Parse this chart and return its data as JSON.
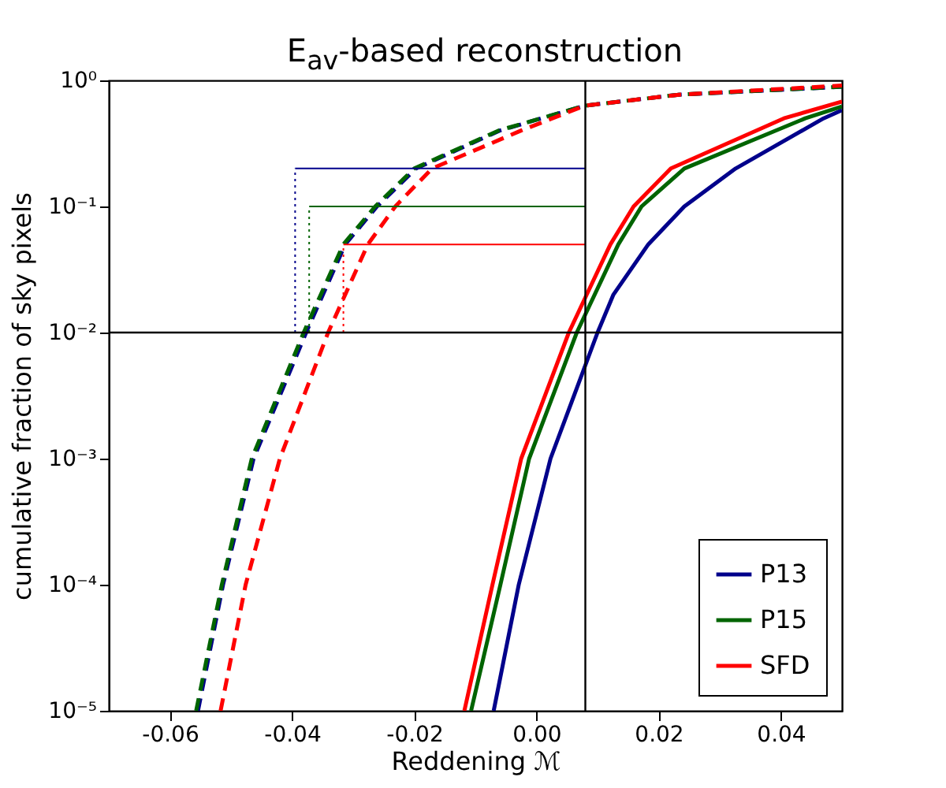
{
  "chart_data": {
    "type": "line",
    "title": "E$_{av}$-based reconstruction",
    "xlabel": "Reddening ℳ",
    "ylabel": "cumulative fraction of sky pixels",
    "log": "y",
    "grid": false,
    "legend": "bottom right",
    "marker": "none",
    "xlim": [
      -0.07,
      0.05
    ],
    "xticks": [
      -0.06,
      -0.04,
      -0.02,
      {
        "value": 0,
        "label": "0.00"
      },
      0.02,
      0.04
    ],
    "ylim": [
      1e-05,
      1
    ],
    "yticks": [
      {
        "value": 1e-05,
        "label": "10⁻⁵"
      },
      {
        "value": 0.0001,
        "label": "10⁻⁴"
      },
      {
        "value": 0.001,
        "label": "10⁻³"
      },
      {
        "value": 0.01,
        "label": "10⁻²"
      },
      {
        "value": 0.1,
        "label": "10⁻¹"
      },
      {
        "value": 1,
        "label": "10⁰"
      }
    ],
    "series": [
      {
        "name": "P13",
        "color": "#00008b",
        "line_style": "solid",
        "x": [
          -0.007,
          -0.0029,
          0.0023,
          0.01,
          0.0126,
          0.0183,
          0.0242,
          0.0326,
          0.047,
          0.05
        ],
        "values": [
          1e-05,
          0.0001,
          0.001,
          0.01,
          0.02,
          0.05,
          0.1,
          0.2,
          0.5,
          0.58
        ]
      },
      {
        "name": "P15",
        "color": "#006400",
        "line_style": "solid",
        "x": [
          -0.0107,
          -0.0059,
          -0.0012,
          0.0066,
          0.0134,
          0.0172,
          0.0242,
          0.044,
          0.05
        ],
        "values": [
          1e-05,
          0.0001,
          0.001,
          0.01,
          0.05,
          0.1,
          0.2,
          0.5,
          0.62
        ]
      },
      {
        "name": "SFD",
        "color": "#ff0000",
        "line_style": "solid",
        "x": [
          -0.0118,
          -0.0072,
          -0.0025,
          0.0053,
          0.0121,
          0.0159,
          0.022,
          0.0405,
          0.05
        ],
        "values": [
          1e-05,
          0.0001,
          0.001,
          0.01,
          0.05,
          0.1,
          0.2,
          0.5,
          0.68
        ]
      },
      {
        "color": "#00008b",
        "line_style": "dashed",
        "x": [
          -0.0554,
          -0.0513,
          -0.0463,
          -0.0377,
          -0.0313,
          -0.0261,
          -0.0197,
          -0.006,
          0.0079,
          0.0233,
          0.05
        ],
        "values": [
          1e-05,
          0.0001,
          0.001,
          0.01,
          0.05,
          0.1,
          0.2,
          0.4,
          0.63,
          0.77,
          0.89
        ]
      },
      {
        "color": "#006400",
        "line_style": "dashed",
        "x": [
          -0.0557,
          -0.0515,
          -0.0466,
          -0.0381,
          -0.0316,
          -0.0264,
          -0.02,
          -0.0062,
          0.0079,
          0.0233,
          0.05
        ],
        "values": [
          1e-05,
          0.0001,
          0.001,
          0.01,
          0.05,
          0.1,
          0.2,
          0.4,
          0.63,
          0.77,
          0.89
        ]
      },
      {
        "color": "#ff0000",
        "line_style": "dashed",
        "x": [
          -0.0517,
          -0.0476,
          -0.042,
          -0.0341,
          -0.0276,
          -0.0231,
          -0.0171,
          -0.0025,
          0.0079,
          0.0233,
          0.05
        ],
        "values": [
          1e-05,
          0.0001,
          0.001,
          0.01,
          0.05,
          0.1,
          0.2,
          0.4,
          0.63,
          0.77,
          0.91
        ]
      },
      {
        "color": "#00008b",
        "line_style": "solid",
        "x": [
          -0.0395,
          0.008
        ],
        "values": [
          0.2,
          0.2
        ]
      },
      {
        "color": "#006400",
        "line_style": "solid",
        "x": [
          -0.0372,
          0.008
        ],
        "values": [
          0.1,
          0.1
        ]
      },
      {
        "color": "#ff0000",
        "line_style": "solid",
        "x": [
          -0.0316,
          0.008
        ],
        "values": [
          0.05,
          0.05
        ]
      },
      {
        "color": "#00008b",
        "line_style": "dotted",
        "x": [
          -0.0395,
          -0.0395
        ],
        "values": [
          0.01,
          0.2
        ]
      },
      {
        "color": "#006400",
        "line_style": "dotted",
        "x": [
          -0.0372,
          -0.0372
        ],
        "values": [
          0.01,
          0.1
        ]
      },
      {
        "color": "#ff0000",
        "line_style": "dotted",
        "x": [
          -0.0316,
          -0.0316
        ],
        "values": [
          0.01,
          0.05
        ]
      }
    ],
    "ref_lines": [
      {
        "axis": "x",
        "value": 0.008,
        "color": "#000000"
      },
      {
        "axis": "y",
        "value": 0.01,
        "color": "#000000"
      }
    ]
  }
}
